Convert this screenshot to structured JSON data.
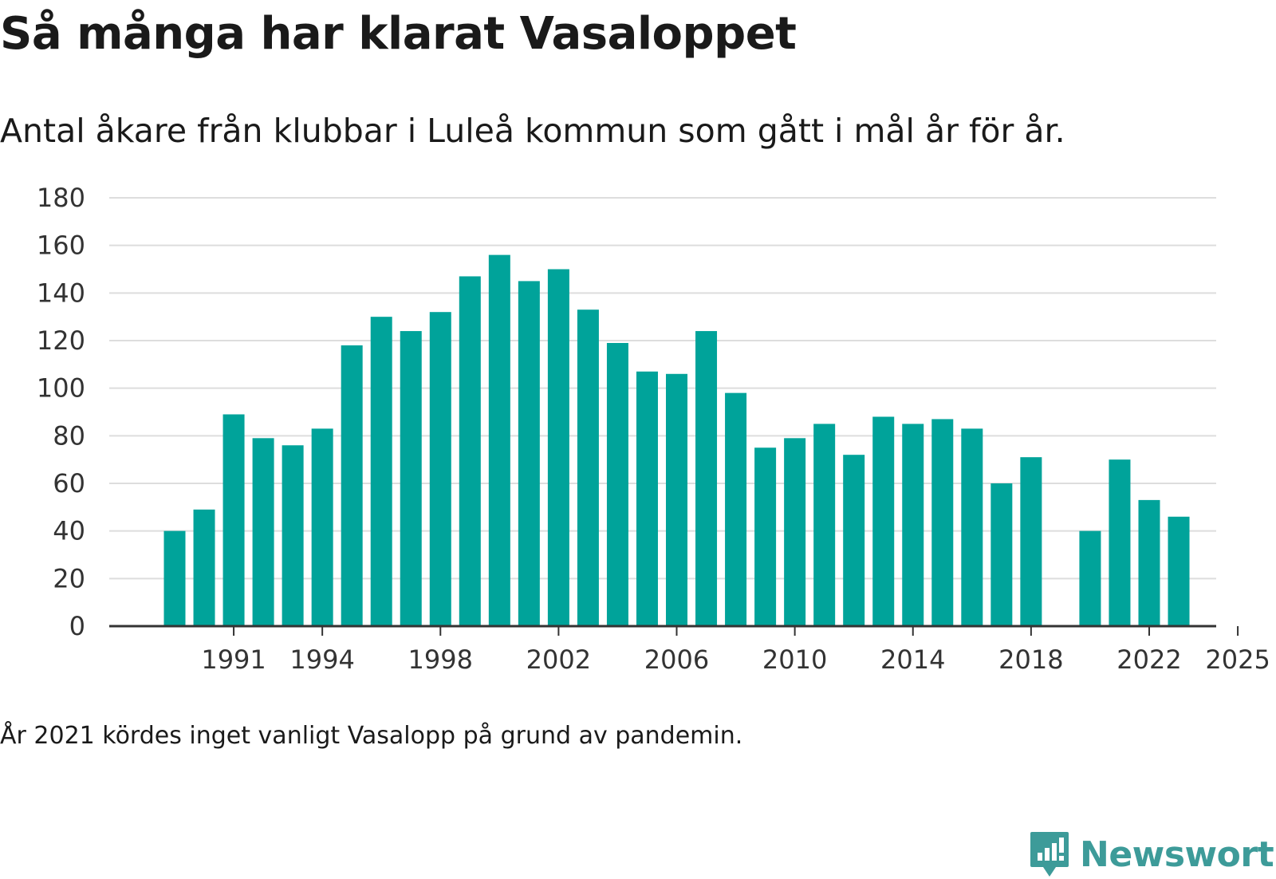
{
  "title": "Så många har klarat Vasaloppet",
  "subtitle": "Antal åkare från klubbar i Luleå kommun som gått i mål år för år.",
  "footnote": "År 2021 kördes inget vanligt Vasalopp på grund av pandemin.",
  "logo": {
    "text": "Newsworthy",
    "icon": "newsworthy-logo-icon",
    "color": "#3d9b99"
  },
  "colors": {
    "bar": "#00a39a",
    "grid": "#dddddd",
    "axis": "#333333"
  },
  "chart_data": {
    "type": "bar",
    "title": "Så många har klarat Vasaloppet",
    "xlabel": "",
    "ylabel": "",
    "ylim": [
      0,
      180
    ],
    "yticks": [
      0,
      20,
      40,
      60,
      80,
      100,
      120,
      140,
      160,
      180
    ],
    "xticks": [
      1991,
      1994,
      1998,
      2002,
      2006,
      2010,
      2014,
      2018,
      2022,
      2025
    ],
    "grid": true,
    "categories": [
      1989,
      1990,
      1991,
      1992,
      1993,
      1994,
      1995,
      1996,
      1997,
      1998,
      1999,
      2000,
      2001,
      2002,
      2003,
      2004,
      2005,
      2006,
      2007,
      2008,
      2009,
      2010,
      2011,
      2012,
      2013,
      2014,
      2015,
      2016,
      2017,
      2018,
      2019,
      2020,
      2021,
      2022,
      2023,
      2024,
      2025
    ],
    "values": [
      40,
      49,
      89,
      79,
      76,
      83,
      118,
      130,
      124,
      132,
      147,
      156,
      145,
      150,
      133,
      119,
      107,
      106,
      124,
      98,
      75,
      79,
      85,
      72,
      88,
      85,
      87,
      83,
      60,
      71,
      null,
      40,
      70,
      53,
      46,
      null,
      null
    ]
  }
}
